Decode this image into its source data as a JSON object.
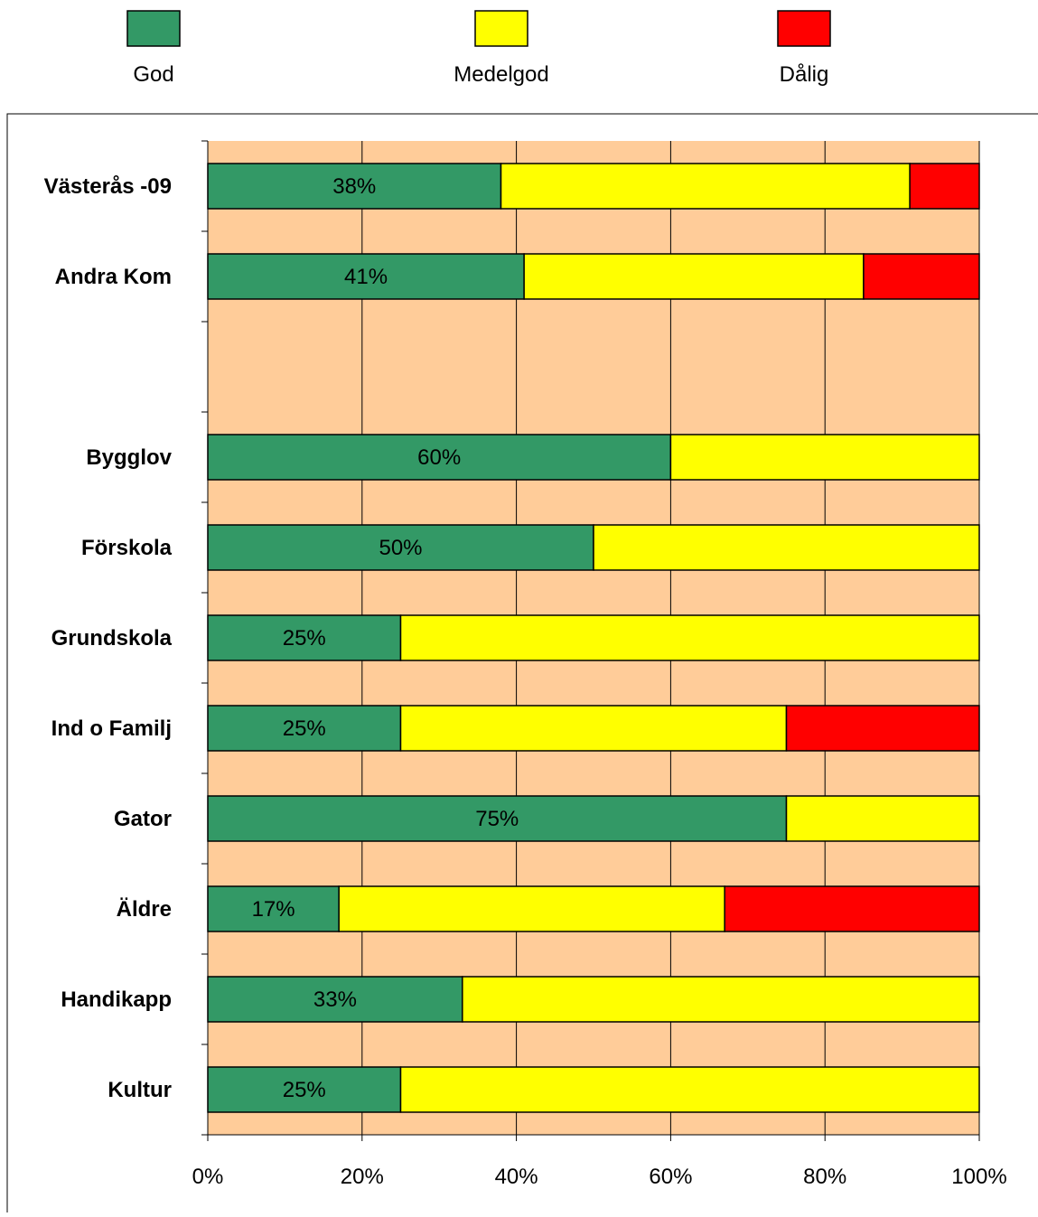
{
  "chart_data": {
    "type": "bar",
    "orientation": "horizontal",
    "stacked": true,
    "percent_stacked": true,
    "categories": [
      "Västerås -09",
      "Andra Kom",
      "",
      "Bygglov",
      "Förskola",
      "Grundskola",
      "Ind o Familj",
      "Gator",
      "Äldre",
      "Handikapp",
      "Kultur"
    ],
    "series": [
      {
        "name": "God",
        "color": "#339966",
        "values": [
          38,
          41,
          null,
          60,
          50,
          25,
          25,
          75,
          17,
          33,
          25
        ]
      },
      {
        "name": "Medelgod",
        "color": "#ffff00",
        "values": [
          53,
          44,
          null,
          40,
          50,
          75,
          50,
          25,
          50,
          67,
          75
        ]
      },
      {
        "name": "Dålig",
        "color": "#ff0000",
        "values": [
          9,
          15,
          null,
          0,
          0,
          0,
          25,
          0,
          33,
          0,
          0
        ]
      }
    ],
    "data_labels": [
      "38%",
      "41%",
      "",
      "60%",
      "50%",
      "25%",
      "25%",
      "75%",
      "17%",
      "33%",
      "25%"
    ],
    "xlim": [
      0,
      100
    ],
    "x_ticks": [
      "0%",
      "20%",
      "40%",
      "60%",
      "80%",
      "100%"
    ],
    "title": "",
    "xlabel": "",
    "ylabel": "",
    "grid": true,
    "legend_position": "top",
    "plot_background": "#ffcc99"
  }
}
